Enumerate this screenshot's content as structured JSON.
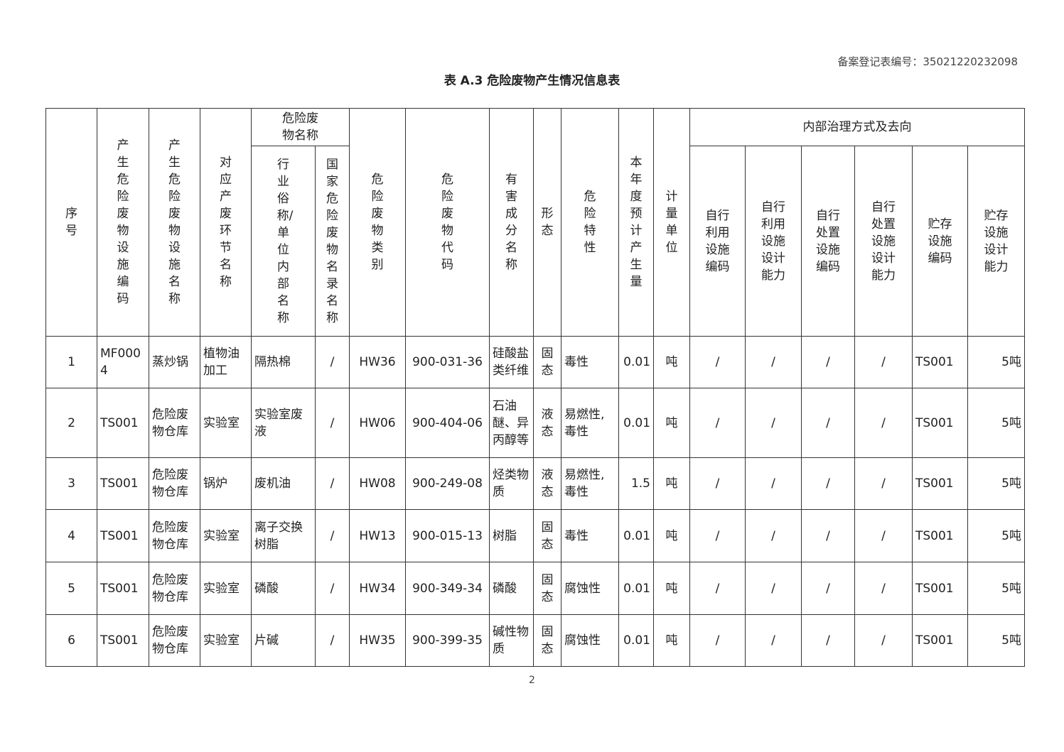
{
  "registration": "备案登记表编号：35021220232098",
  "title": "表  A.3  危险废物产生情况信息表",
  "headers": {
    "seq": "序号",
    "facility_code": "产生危险废物设施编码",
    "facility_name": "产生危险废物设施名称",
    "process": "对应产废环节名称",
    "waste_name_group": "危险废物名称",
    "common_name": "行业俗称/单位内部名称",
    "national_name": "国家危险废物名录名称",
    "category": "危险废物类别",
    "code": "危险废物代码",
    "components": "有害成分名称",
    "form": "形态",
    "property": "危险特性",
    "amount": "本年度预计产生量",
    "unit": "计量单位",
    "internal_group": "内部治理方式及去向",
    "self_use_code": "自行利用设施编码",
    "self_use_cap": "自行利用设施设计能力",
    "self_dispose_code": "自行处置设施编码",
    "self_dispose_cap": "自行处置设施设计能力",
    "storage_code": "贮存设施编码",
    "storage_cap": "贮存设施设计能力"
  },
  "rows": [
    {
      "seq": "1",
      "facility_code": "MF0004",
      "facility_name": "蒸炒锅",
      "process": "植物油加工",
      "common_name": "隔热棉",
      "national_name": "/",
      "category": "HW36",
      "code": "900-031-36",
      "components": "硅酸盐类纤维",
      "form": "固态",
      "property": "毒性",
      "amount": "0.01",
      "unit": "吨",
      "self_use_code": "/",
      "self_use_cap": "/",
      "self_dispose_code": "/",
      "self_dispose_cap": "/",
      "storage_code": "TS001",
      "storage_cap": "5吨"
    },
    {
      "seq": "2",
      "facility_code": "TS001",
      "facility_name": "危险废物仓库",
      "process": "实验室",
      "common_name": "实验室废液",
      "national_name": "/",
      "category": "HW06",
      "code": "900-404-06",
      "components": "石油醚、异丙醇等",
      "form": "液态",
      "property": "易燃性,毒性",
      "amount": "0.01",
      "unit": "吨",
      "self_use_code": "/",
      "self_use_cap": "/",
      "self_dispose_code": "/",
      "self_dispose_cap": "/",
      "storage_code": "TS001",
      "storage_cap": "5吨"
    },
    {
      "seq": "3",
      "facility_code": "TS001",
      "facility_name": "危险废物仓库",
      "process": "锅炉",
      "common_name": "废机油",
      "national_name": "/",
      "category": "HW08",
      "code": "900-249-08",
      "components": "烃类物质",
      "form": "液态",
      "property": "易燃性,毒性",
      "amount": "1.5",
      "unit": "吨",
      "self_use_code": "/",
      "self_use_cap": "/",
      "self_dispose_code": "/",
      "self_dispose_cap": "/",
      "storage_code": "TS001",
      "storage_cap": "5吨"
    },
    {
      "seq": "4",
      "facility_code": "TS001",
      "facility_name": "危险废物仓库",
      "process": "实验室",
      "common_name": "离子交换树脂",
      "national_name": "/",
      "category": "HW13",
      "code": "900-015-13",
      "components": "树脂",
      "form": "固态",
      "property": "毒性",
      "amount": "0.01",
      "unit": "吨",
      "self_use_code": "/",
      "self_use_cap": "/",
      "self_dispose_code": "/",
      "self_dispose_cap": "/",
      "storage_code": "TS001",
      "storage_cap": "5吨"
    },
    {
      "seq": "5",
      "facility_code": "TS001",
      "facility_name": "危险废物仓库",
      "process": "实验室",
      "common_name": "磷酸",
      "national_name": "/",
      "category": "HW34",
      "code": "900-349-34",
      "components": "磷酸",
      "form": "固态",
      "property": "腐蚀性",
      "amount": "0.01",
      "unit": "吨",
      "self_use_code": "/",
      "self_use_cap": "/",
      "self_dispose_code": "/",
      "self_dispose_cap": "/",
      "storage_code": "TS001",
      "storage_cap": "5吨"
    },
    {
      "seq": "6",
      "facility_code": "TS001",
      "facility_name": "危险废物仓库",
      "process": "实验室",
      "common_name": "片碱",
      "national_name": "/",
      "category": "HW35",
      "code": "900-399-35",
      "components": "碱性物质",
      "form": "固态",
      "property": "腐蚀性",
      "amount": "0.01",
      "unit": "吨",
      "self_use_code": "/",
      "self_use_cap": "/",
      "self_dispose_code": "/",
      "self_dispose_cap": "/",
      "storage_code": "TS001",
      "storage_cap": "5吨"
    }
  ],
  "page_number": "2"
}
